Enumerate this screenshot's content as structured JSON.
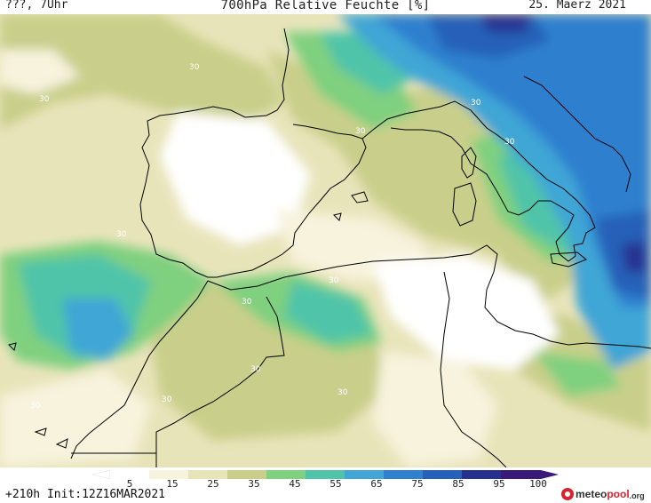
{
  "header": {
    "left": "???, 7Uhr",
    "title": "700hPa Relative Feuchte [%]",
    "date": "25. Maerz 2021"
  },
  "map": {
    "contour_label": "30",
    "colors": {
      "rh_5": "#ffffff",
      "rh_15": "#f7f3dd",
      "rh_25": "#e8e4ba",
      "rh_35": "#c9cf8a",
      "rh_45": "#7fd07f",
      "rh_55": "#4fc4a9",
      "rh_65": "#41a6d6",
      "rh_75": "#2f80cf",
      "rh_85": "#2561b8",
      "rh_95": "#25308f",
      "rh_100": "#3a1a78"
    }
  },
  "legend": {
    "ticks": [
      "5",
      "15",
      "25",
      "35",
      "45",
      "55",
      "65",
      "75",
      "85",
      "95",
      "100"
    ]
  },
  "footer": {
    "run": "+210h  Init:12Z16MAR2021"
  },
  "logo": {
    "part1": "meteo",
    "part2": "pool",
    "part3": ".org"
  }
}
